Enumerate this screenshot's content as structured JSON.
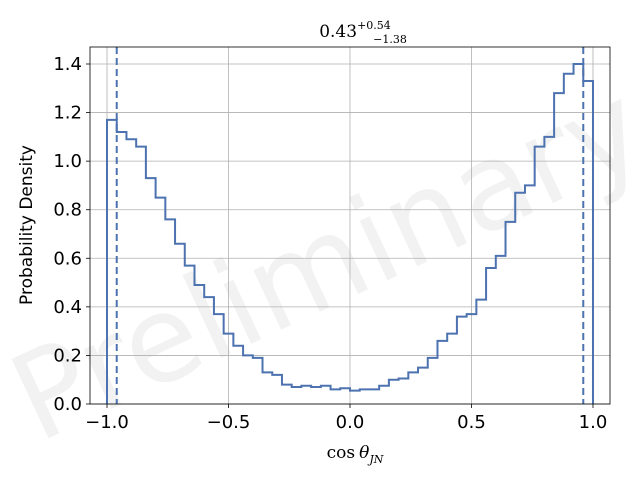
{
  "chart_data": {
    "type": "step-histogram",
    "title": {
      "value": "0.43",
      "sup": "+0.54",
      "sub": "−1.38"
    },
    "xlabel": {
      "prefix": "cos",
      "symbol": "θ",
      "subscript": "JN"
    },
    "ylabel": "Probability Density",
    "xlim": [
      -1.07,
      1.07
    ],
    "ylim": [
      0,
      1.47
    ],
    "xticks": [
      -1.0,
      -0.5,
      0.0,
      0.5,
      1.0
    ],
    "xtick_labels": [
      "−1.0",
      "−0.5",
      "0.0",
      "0.5",
      "1.0"
    ],
    "yticks": [
      0.0,
      0.2,
      0.4,
      0.6,
      0.8,
      1.0,
      1.2,
      1.4
    ],
    "ytick_labels": [
      "0.0",
      "0.2",
      "0.4",
      "0.6",
      "0.8",
      "1.0",
      "1.2",
      "1.4"
    ],
    "grid": true,
    "color": "#4c72b0",
    "bin_range": [
      -1.0,
      1.0
    ],
    "bin_width": 0.04,
    "densities": [
      1.17,
      1.12,
      1.09,
      1.06,
      0.93,
      0.85,
      0.76,
      0.66,
      0.57,
      0.49,
      0.44,
      0.37,
      0.29,
      0.24,
      0.2,
      0.19,
      0.13,
      0.12,
      0.08,
      0.07,
      0.075,
      0.07,
      0.075,
      0.06,
      0.065,
      0.055,
      0.06,
      0.06,
      0.075,
      0.1,
      0.105,
      0.13,
      0.15,
      0.19,
      0.26,
      0.29,
      0.36,
      0.37,
      0.43,
      0.56,
      0.61,
      0.75,
      0.87,
      0.9,
      1.06,
      1.1,
      1.28,
      1.36,
      1.4,
      1.33
    ],
    "interval_lines": [
      -0.96,
      0.96
    ],
    "watermark": "Preliminary"
  }
}
